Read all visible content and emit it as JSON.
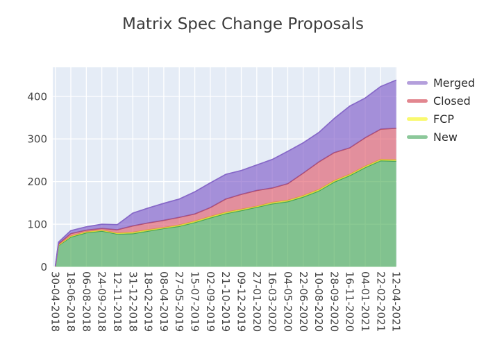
{
  "chart_data": {
    "type": "area",
    "stacked": true,
    "title": "Matrix Spec Change Proposals",
    "x_dates": [
      "30-04-2018",
      "10-05-2018",
      "18-06-2018",
      "06-08-2018",
      "24-09-2018",
      "12-11-2018",
      "31-12-2018",
      "18-02-2019",
      "08-04-2019",
      "27-05-2019",
      "15-07-2019",
      "02-09-2019",
      "21-10-2019",
      "09-12-2019",
      "27-01-2020",
      "16-03-2020",
      "04-05-2020",
      "22-06-2020",
      "10-08-2020",
      "28-09-2020",
      "16-11-2020",
      "04-01-2021",
      "22-02-2021",
      "12-04-2021"
    ],
    "x_tick_labels": [
      "30-04-2018",
      "18-06-2018",
      "06-08-2018",
      "24-09-2018",
      "12-11-2018",
      "31-12-2018",
      "18-02-2019",
      "08-04-2019",
      "27-05-2019",
      "15-07-2019",
      "02-09-2019",
      "21-10-2019",
      "09-12-2019",
      "27-01-2020",
      "16-03-2020",
      "04-05-2020",
      "22-06-2020",
      "10-08-2020",
      "28-09-2020",
      "16-11-2020",
      "04-01-2021",
      "22-02-2021",
      "12-04-2021"
    ],
    "y_ticks": [
      0,
      100,
      200,
      300,
      400
    ],
    "y_range": [
      0,
      468
    ],
    "grid": true,
    "legend_position": "right",
    "legend_order": [
      "Merged",
      "Closed",
      "FCP",
      "New"
    ],
    "series": [
      {
        "name": "New",
        "values": [
          1,
          50,
          70,
          80,
          84,
          77,
          78,
          84,
          90,
          95,
          104,
          115,
          125,
          132,
          140,
          148,
          153,
          164,
          178,
          199,
          214,
          233,
          249,
          248
        ],
        "fill_base": "#44a84f",
        "line_color": "#3c9e52",
        "legend_swatch": "#8cc89a"
      },
      {
        "name": "FCP",
        "values": [
          0,
          1,
          2,
          2,
          2,
          2,
          3,
          3,
          2,
          3,
          3,
          3,
          3,
          3,
          2,
          3,
          3,
          3,
          3,
          3,
          3,
          3,
          3,
          3
        ],
        "fill_base": "#f2ef40",
        "line_color": "#e3dd33",
        "legend_swatch": "#f9f96f"
      },
      {
        "name": "Closed",
        "values": [
          0,
          3,
          6,
          4,
          4,
          8,
          15,
          16,
          17,
          18,
          17,
          21,
          31,
          35,
          37,
          34,
          39,
          53,
          65,
          66,
          62,
          67,
          71,
          74
        ],
        "fill_base": "#e05566",
        "line_color": "#b85165",
        "legend_swatch": "#e2868f"
      },
      {
        "name": "Merged",
        "values": [
          1,
          4,
          7,
          8,
          10,
          12,
          30,
          35,
          40,
          43,
          52,
          58,
          58,
          56,
          60,
          67,
          76,
          71,
          69,
          80,
          98,
          93,
          100,
          113
        ],
        "fill_base": "#7d55c7",
        "line_color": "#8668c8",
        "legend_swatch": "#b49fdc"
      }
    ],
    "colors": {
      "plot_background": "#e5ecf6",
      "gridline": "#ffffff",
      "tick_label": "#444444",
      "title": "#3c3c3c",
      "fill_alpha": 0.62
    }
  }
}
